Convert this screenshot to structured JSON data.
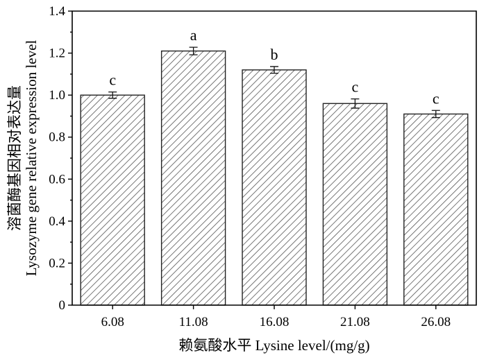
{
  "chart_data": {
    "type": "bar",
    "categories": [
      "6.08",
      "11.08",
      "16.08",
      "21.08",
      "26.08"
    ],
    "values": [
      1.0,
      1.21,
      1.12,
      0.96,
      0.91
    ],
    "errors": [
      0.015,
      0.018,
      0.016,
      0.022,
      0.017
    ],
    "significance": [
      "c",
      "a",
      "b",
      "c",
      "c"
    ],
    "xlabel": "赖氨酸水平  Lysine level/(mg/g)",
    "ylabel_cn": "溶菌酶基因相对表达量",
    "ylabel_en": "Lysozyme gene relative expression level",
    "ylim": [
      0,
      1.4
    ],
    "yticks": [
      "0",
      "0.2",
      "0.4",
      "0.6",
      "0.8",
      "1.0",
      "1.2",
      "1.4"
    ],
    "grid": false,
    "bar_pattern": "diagonal-hatch",
    "colors": {
      "hatch": "#555555",
      "bar_edge": "#222222",
      "axis": "#000000"
    }
  }
}
